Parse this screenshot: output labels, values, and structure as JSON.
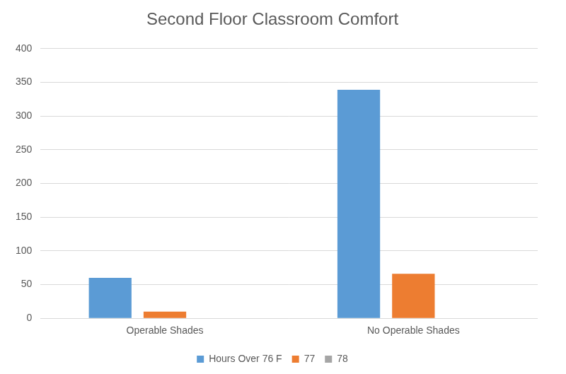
{
  "chart_data": {
    "type": "bar",
    "title": "Second Floor Classroom Comfort",
    "categories": [
      "Operable Shades",
      "No Operable Shades"
    ],
    "series": [
      {
        "name": "Hours Over 76 F",
        "color": "#5b9bd5",
        "values": [
          60,
          339
        ]
      },
      {
        "name": "77",
        "color": "#ed7d31",
        "values": [
          10,
          66
        ]
      },
      {
        "name": "78",
        "color": "#a5a5a5",
        "values": [
          0,
          0
        ]
      }
    ],
    "ylim": [
      0,
      400
    ],
    "yticks": [
      0,
      50,
      100,
      150,
      200,
      250,
      300,
      350,
      400
    ],
    "grid": true,
    "legend": "bottom"
  }
}
